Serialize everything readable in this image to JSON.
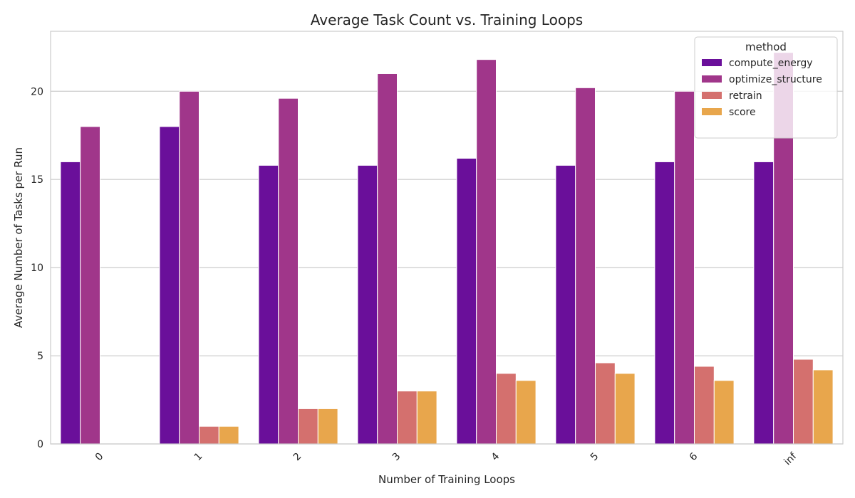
{
  "chart_data": {
    "type": "bar",
    "title": "Average Task Count vs. Training Loops",
    "xlabel": "Number of Training Loops",
    "ylabel": "Average Number of Tasks per Run",
    "categories": [
      "0",
      "1",
      "2",
      "3",
      "4",
      "5",
      "6",
      "inf"
    ],
    "ylim": [
      0,
      23.4
    ],
    "yticks": [
      0,
      5,
      10,
      15,
      20
    ],
    "grid": "horizontal",
    "legend": {
      "title": "method",
      "placement": "top-right"
    },
    "series": [
      {
        "name": "compute_energy",
        "color": "#6a0f9a",
        "values": [
          16,
          18,
          15.8,
          15.8,
          16.2,
          15.8,
          16,
          16
        ]
      },
      {
        "name": "optimize_structure",
        "color": "#a0368a",
        "values": [
          18,
          20,
          19.6,
          21,
          21.8,
          20.2,
          20,
          22.2
        ]
      },
      {
        "name": "retrain",
        "color": "#d4706e",
        "values": [
          0,
          1,
          2,
          3,
          4,
          4.6,
          4.4,
          4.8
        ]
      },
      {
        "name": "score",
        "color": "#e8a64c",
        "values": [
          0,
          1,
          2,
          3,
          3.6,
          4,
          3.6,
          4.2
        ]
      }
    ]
  }
}
